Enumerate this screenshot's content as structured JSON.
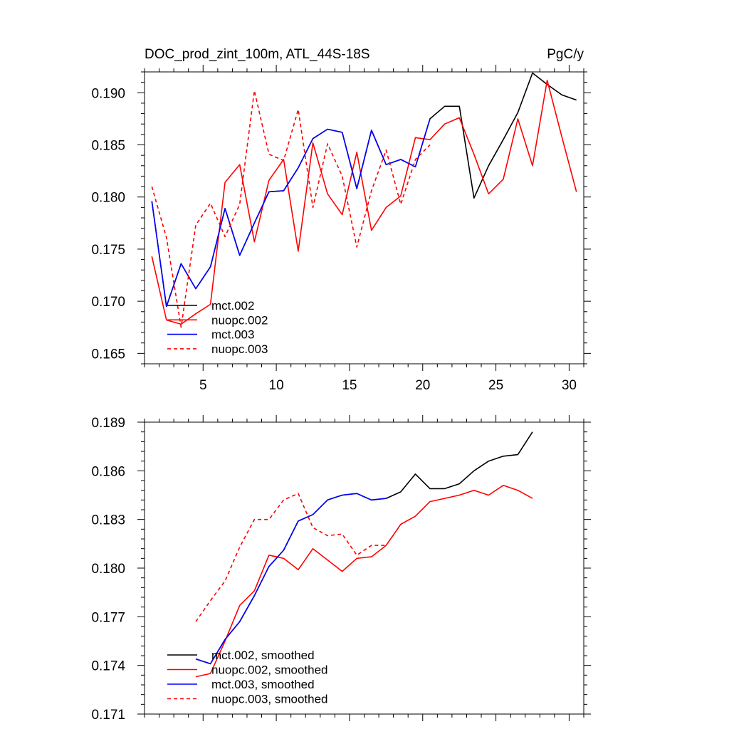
{
  "chart_data": [
    {
      "type": "line",
      "title": "DOC_prod_zint_100m, ATL_44S-18S",
      "units": "PgC/y",
      "xlim": [
        1,
        31
      ],
      "ylim": [
        0.164,
        0.192
      ],
      "x_ticks": [
        5,
        10,
        15,
        20,
        25,
        30
      ],
      "x_tick_labels": [
        "5",
        "10",
        "15",
        "20",
        "25",
        "30"
      ],
      "y_ticks": [
        0.165,
        0.17,
        0.175,
        0.18,
        0.185,
        0.19
      ],
      "y_tick_labels": [
        "0.165",
        "0.170",
        "0.175",
        "0.180",
        "0.185",
        "0.190"
      ],
      "legend": {
        "position": "bottom-left",
        "entries": [
          "mct.002",
          "nuopc.002",
          "mct.003",
          "nuopc.003"
        ]
      },
      "series": [
        {
          "name": "mct.002",
          "color": "#000000",
          "dash": "solid",
          "x": [
            1.5,
            2.5,
            3.5,
            4.5,
            5.5,
            6.5,
            7.5,
            8.5,
            9.5,
            10.5,
            11.5,
            12.5,
            13.5,
            14.5,
            15.5,
            16.5,
            17.5,
            18.5,
            19.5,
            20.5,
            21.5,
            22.5,
            23.5,
            24.5,
            25.5,
            26.5,
            27.5,
            28.5,
            29.5,
            30.5
          ],
          "y": [
            0.1796,
            0.1695,
            0.1736,
            0.1712,
            0.1733,
            0.1789,
            0.1744,
            0.1775,
            0.1805,
            0.1806,
            0.1828,
            0.1856,
            0.1865,
            0.1862,
            0.1808,
            0.1864,
            0.1831,
            0.1836,
            0.1829,
            0.1875,
            0.1887,
            0.1887,
            0.1799,
            0.183,
            0.1855,
            0.1881,
            0.1919,
            0.1908,
            0.1898,
            0.1893
          ]
        },
        {
          "name": "nuopc.002",
          "color": "#ff0000",
          "dash": "solid",
          "x": [
            1.5,
            2.5,
            3.5,
            4.5,
            5.5,
            6.5,
            7.5,
            8.5,
            9.5,
            10.5,
            11.5,
            12.5,
            13.5,
            14.5,
            15.5,
            16.5,
            17.5,
            18.5,
            19.5,
            20.5,
            21.5,
            22.5,
            23.5,
            24.5,
            25.5,
            26.5,
            27.5,
            28.5,
            29.5,
            30.5
          ],
          "y": [
            0.1743,
            0.1682,
            0.1678,
            0.1688,
            0.1697,
            0.1814,
            0.1831,
            0.1757,
            0.1816,
            0.1836,
            0.1748,
            0.1852,
            0.1803,
            0.1783,
            0.1843,
            0.1768,
            0.179,
            0.1801,
            0.1857,
            0.1855,
            0.187,
            0.1876,
            0.1841,
            0.1803,
            0.1817,
            0.1875,
            0.183,
            0.1912,
            0.1858,
            0.1805
          ]
        },
        {
          "name": "mct.003",
          "color": "#0000ff",
          "dash": "solid",
          "x": [
            1.5,
            2.5,
            3.5,
            4.5,
            5.5,
            6.5,
            7.5,
            8.5,
            9.5,
            10.5,
            11.5,
            12.5,
            13.5,
            14.5,
            15.5,
            16.5,
            17.5,
            18.5,
            19.5,
            20.5
          ],
          "y": [
            0.1796,
            0.1695,
            0.1736,
            0.1712,
            0.1733,
            0.1789,
            0.1744,
            0.1775,
            0.1805,
            0.1806,
            0.1828,
            0.1856,
            0.1865,
            0.1862,
            0.1808,
            0.1864,
            0.1831,
            0.1836,
            0.1829,
            0.1875
          ]
        },
        {
          "name": "nuopc.003",
          "color": "#ff0000",
          "dash": "dashed",
          "x": [
            1.5,
            2.5,
            3.5,
            4.5,
            5.5,
            6.5,
            7.5,
            8.5,
            9.5,
            10.5,
            11.5,
            12.5,
            13.5,
            14.5,
            15.5,
            16.5,
            17.5,
            18.5,
            19.5,
            20.5
          ],
          "y": [
            0.181,
            0.1761,
            0.1675,
            0.1773,
            0.1794,
            0.1762,
            0.1793,
            0.1902,
            0.1841,
            0.1835,
            0.1884,
            0.179,
            0.1851,
            0.182,
            0.1752,
            0.1806,
            0.1845,
            0.1793,
            0.1836,
            0.185
          ]
        }
      ]
    },
    {
      "type": "line",
      "title": "",
      "xlim": [
        1,
        31
      ],
      "ylim": [
        0.171,
        0.189
      ],
      "x_ticks": [
        5,
        10,
        15,
        20,
        25,
        30
      ],
      "x_tick_labels": [],
      "y_ticks": [
        0.171,
        0.174,
        0.177,
        0.18,
        0.183,
        0.186,
        0.189
      ],
      "y_tick_labels": [
        "0.171",
        "0.174",
        "0.177",
        "0.180",
        "0.183",
        "0.186",
        "0.189"
      ],
      "legend": {
        "position": "bottom-left",
        "entries": [
          "mct.002, smoothed",
          "nuopc.002, smoothed",
          "mct.003, smoothed",
          "nuopc.003, smoothed"
        ]
      },
      "series": [
        {
          "name": "mct.002, smoothed",
          "color": "#000000",
          "dash": "solid",
          "x": [
            4.5,
            5.5,
            6.5,
            7.5,
            8.5,
            9.5,
            10.5,
            11.5,
            12.5,
            13.5,
            14.5,
            15.5,
            16.5,
            17.5,
            18.5,
            19.5,
            20.5,
            21.5,
            22.5,
            23.5,
            24.5,
            25.5,
            26.5,
            27.5
          ],
          "y": [
            0.1744,
            0.1741,
            0.1756,
            0.1767,
            0.1783,
            0.1801,
            0.1811,
            0.1829,
            0.1833,
            0.1842,
            0.1845,
            0.1846,
            0.1842,
            0.1843,
            0.1847,
            0.1858,
            0.1849,
            0.1849,
            0.1852,
            0.186,
            0.1866,
            0.1869,
            0.187,
            0.1884
          ]
        },
        {
          "name": "nuopc.002, smoothed",
          "color": "#ff0000",
          "dash": "solid",
          "x": [
            4.5,
            5.5,
            6.5,
            7.5,
            8.5,
            9.5,
            10.5,
            11.5,
            12.5,
            13.5,
            14.5,
            15.5,
            16.5,
            17.5,
            18.5,
            19.5,
            20.5,
            21.5,
            22.5,
            23.5,
            24.5,
            25.5,
            26.5,
            27.5
          ],
          "y": [
            0.1733,
            0.1735,
            0.1755,
            0.1777,
            0.1786,
            0.1808,
            0.1806,
            0.1799,
            0.1812,
            0.1805,
            0.1798,
            0.1806,
            0.1807,
            0.1814,
            0.1827,
            0.1832,
            0.1841,
            0.1843,
            0.1845,
            0.1848,
            0.1845,
            0.1851,
            0.1848,
            0.1843
          ]
        },
        {
          "name": "mct.003, smoothed",
          "color": "#0000ff",
          "dash": "solid",
          "x": [
            4.5,
            5.5,
            6.5,
            7.5,
            8.5,
            9.5,
            10.5,
            11.5,
            12.5,
            13.5,
            14.5,
            15.5,
            16.5,
            17.5
          ],
          "y": [
            0.1744,
            0.1741,
            0.1756,
            0.1767,
            0.1783,
            0.1801,
            0.1811,
            0.1829,
            0.1833,
            0.1842,
            0.1845,
            0.1846,
            0.1842,
            0.1843
          ]
        },
        {
          "name": "nuopc.003, smoothed",
          "color": "#ff0000",
          "dash": "dashed",
          "x": [
            4.5,
            5.5,
            6.5,
            7.5,
            8.5,
            9.5,
            10.5,
            11.5,
            12.5,
            13.5,
            14.5,
            15.5,
            16.5,
            17.5
          ],
          "y": [
            0.1767,
            0.178,
            0.1792,
            0.1813,
            0.183,
            0.183,
            0.1842,
            0.1846,
            0.1825,
            0.182,
            0.1821,
            0.1808,
            0.1814,
            0.1814
          ]
        }
      ]
    }
  ]
}
